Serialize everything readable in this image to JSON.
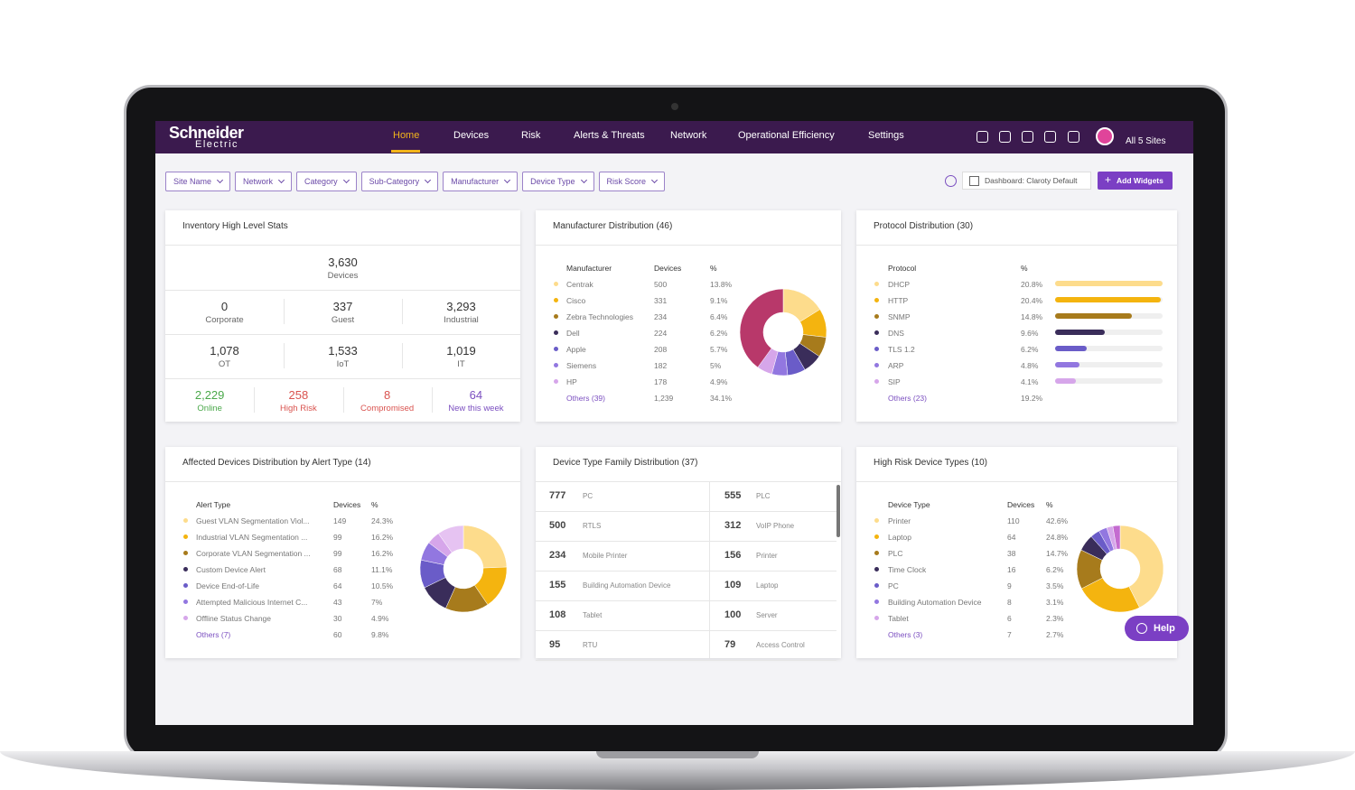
{
  "header": {
    "logo": "Schneider",
    "logo_sub": "Electric",
    "nav": [
      "Home",
      "Devices",
      "Risk",
      "Alerts & Threats",
      "Network",
      "Operational Efficiency",
      "Settings"
    ],
    "sites": "All 5 Sites"
  },
  "filters": [
    "Site Name",
    "Network",
    "Category",
    "Sub-Category",
    "Manufacturer",
    "Device Type",
    "Risk Score"
  ],
  "dashboard": "Dashboard: Claroty Default",
  "add_widgets": "Add Widgets",
  "inventory": {
    "title": "Inventory High Level Stats",
    "total": {
      "value": "3,630",
      "label": "Devices"
    },
    "rows": [
      [
        {
          "value": "0",
          "label": "Corporate"
        },
        {
          "value": "337",
          "label": "Guest"
        },
        {
          "value": "3,293",
          "label": "Industrial"
        }
      ],
      [
        {
          "value": "1,078",
          "label": "OT"
        },
        {
          "value": "1,533",
          "label": "IoT"
        },
        {
          "value": "1,019",
          "label": "IT"
        }
      ]
    ],
    "status": [
      {
        "value": "2,229",
        "label": "Online",
        "color": "#4aa84a"
      },
      {
        "value": "258",
        "label": "High Risk",
        "color": "#d9534f"
      },
      {
        "value": "8",
        "label": "Compromised",
        "color": "#d9534f"
      },
      {
        "value": "64",
        "label": "New this week",
        "color": "#7b4fc0"
      }
    ]
  },
  "manufacturer": {
    "title": "Manufacturer Distribution (46)",
    "headers": [
      "Manufacturer",
      "Devices",
      "%"
    ],
    "rows": [
      {
        "name": "Centrak",
        "devices": 500,
        "pct": "13.8%",
        "color": "#fddc8c"
      },
      {
        "name": "Cisco",
        "devices": 331,
        "pct": "9.1%",
        "color": "#f4b40f"
      },
      {
        "name": "Zebra Technologies",
        "devices": 234,
        "pct": "6.4%",
        "color": "#a77b1c"
      },
      {
        "name": "Dell",
        "devices": 224,
        "pct": "6.2%",
        "color": "#3a2d5a"
      },
      {
        "name": "Apple",
        "devices": 208,
        "pct": "5.7%",
        "color": "#6a5cc8"
      },
      {
        "name": "Siemens",
        "devices": 182,
        "pct": "5%",
        "color": "#9277e0"
      },
      {
        "name": "HP",
        "devices": 178,
        "pct": "4.9%",
        "color": "#d6a6ea"
      }
    ],
    "others": {
      "name": "Others (39)",
      "devices": {
        "value": 1239,
        "label": "1,239"
      },
      "pct": "34.1%",
      "color": "#b8386a"
    }
  },
  "protocol": {
    "title": "Protocol Distribution (30)",
    "headers": [
      "Protocol",
      "%"
    ],
    "rows": [
      {
        "name": "DHCP",
        "pct": {
          "value": 20.8,
          "label": "20.8%"
        },
        "color": "#fddc8c"
      },
      {
        "name": "HTTP",
        "pct": {
          "value": 20.4,
          "label": "20.4%"
        },
        "color": "#f4b40f"
      },
      {
        "name": "SNMP",
        "pct": {
          "value": 14.8,
          "label": "14.8%"
        },
        "color": "#a77b1c"
      },
      {
        "name": "DNS",
        "pct": {
          "value": 9.6,
          "label": "9.6%"
        },
        "color": "#3a2d5a"
      },
      {
        "name": "TLS 1.2",
        "pct": {
          "value": 6.2,
          "label": "6.2%"
        },
        "color": "#6a5cc8"
      },
      {
        "name": "ARP",
        "pct": {
          "value": 4.8,
          "label": "4.8%"
        },
        "color": "#9277e0"
      },
      {
        "name": "SIP",
        "pct": {
          "value": 4.1,
          "label": "4.1%"
        },
        "color": "#d6a6ea"
      }
    ],
    "others": {
      "name": "Others (23)",
      "pct": {
        "value": 19.2,
        "label": "19.2%"
      }
    }
  },
  "alerts": {
    "title": "Affected Devices Distribution by Alert Type (14)",
    "headers": [
      "Alert Type",
      "Devices",
      "%"
    ],
    "rows": [
      {
        "name": "Guest VLAN Segmentation Viol...",
        "devices": 149,
        "pct": "24.3%",
        "color": "#fddc8c"
      },
      {
        "name": "Industrial VLAN Segmentation ...",
        "devices": 99,
        "pct": "16.2%",
        "color": "#f4b40f"
      },
      {
        "name": "Corporate VLAN Segmentation ...",
        "devices": 99,
        "pct": "16.2%",
        "color": "#a77b1c"
      },
      {
        "name": "Custom Device Alert",
        "devices": 68,
        "pct": "11.1%",
        "color": "#3a2d5a"
      },
      {
        "name": "Device End-of-Life",
        "devices": 64,
        "pct": "10.5%",
        "color": "#6a5cc8"
      },
      {
        "name": "Attempted Malicious Internet C...",
        "devices": 43,
        "pct": "7%",
        "color": "#9277e0"
      },
      {
        "name": "Offline Status Change",
        "devices": 30,
        "pct": "4.9%",
        "color": "#d6a6ea"
      }
    ],
    "others": {
      "name": "Others (7)",
      "devices": 60,
      "pct": "9.8%",
      "color": "#e6c3f2"
    }
  },
  "device_family": {
    "title": "Device Type Family Distribution (37)",
    "items": [
      {
        "count": 777,
        "name": "PC"
      },
      {
        "count": 555,
        "name": "PLC"
      },
      {
        "count": 500,
        "name": "RTLS"
      },
      {
        "count": 312,
        "name": "VoIP Phone"
      },
      {
        "count": 234,
        "name": "Mobile Printer"
      },
      {
        "count": 156,
        "name": "Printer"
      },
      {
        "count": 155,
        "name": "Building Automation Device"
      },
      {
        "count": 109,
        "name": "Laptop"
      },
      {
        "count": 108,
        "name": "Tablet"
      },
      {
        "count": 100,
        "name": "Server"
      },
      {
        "count": 95,
        "name": "RTU"
      },
      {
        "count": 79,
        "name": "Access Control"
      }
    ]
  },
  "high_risk": {
    "title": "High Risk Device Types (10)",
    "headers": [
      "Device Type",
      "Devices",
      "%"
    ],
    "rows": [
      {
        "name": "Printer",
        "devices": 110,
        "pct": "42.6%",
        "color": "#fddc8c"
      },
      {
        "name": "Laptop",
        "devices": 64,
        "pct": "24.8%",
        "color": "#f4b40f"
      },
      {
        "name": "PLC",
        "devices": 38,
        "pct": "14.7%",
        "color": "#a77b1c"
      },
      {
        "name": "Time Clock",
        "devices": 16,
        "pct": "6.2%",
        "color": "#3a2d5a"
      },
      {
        "name": "PC",
        "devices": 9,
        "pct": "3.5%",
        "color": "#6a5cc8"
      },
      {
        "name": "Building Automation Device",
        "devices": 8,
        "pct": "3.1%",
        "color": "#9277e0"
      },
      {
        "name": "Tablet",
        "devices": 6,
        "pct": "2.3%",
        "color": "#d6a6ea"
      }
    ],
    "others": {
      "name": "Others (3)",
      "devices": 7,
      "pct": "2.7%",
      "color": "#c46bd0"
    }
  },
  "help": "Help"
}
